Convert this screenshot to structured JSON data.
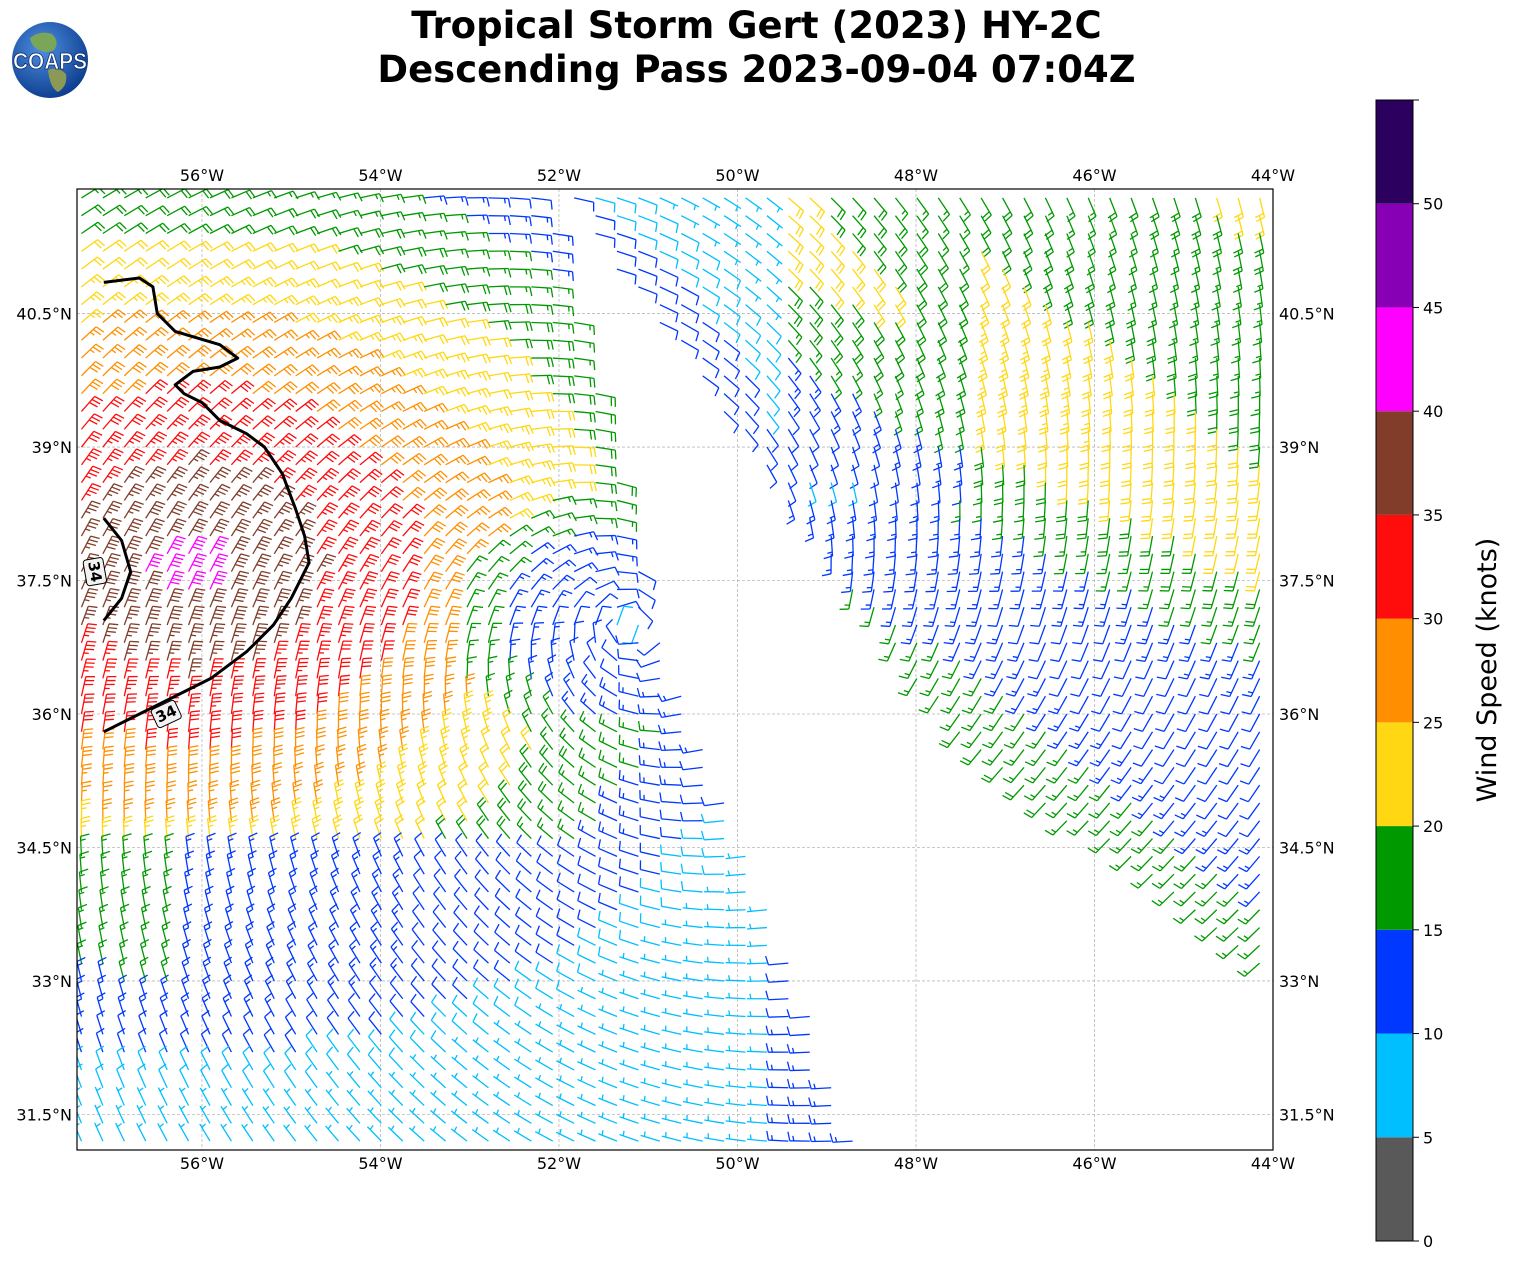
{
  "title": {
    "line1": "Tropical Storm Gert (2023) HY-2C",
    "line2": "Descending Pass 2023-09-04 07:04Z"
  },
  "logo": {
    "text": "COAPS",
    "icon": "coaps-globe-logo"
  },
  "map": {
    "lon_range": [
      -57.4,
      -44.0
    ],
    "lat_range": [
      31.1,
      41.9
    ],
    "lon_ticks": [
      {
        "value": -56,
        "label": "56°W"
      },
      {
        "value": -54,
        "label": "54°W"
      },
      {
        "value": -52,
        "label": "52°W"
      },
      {
        "value": -50,
        "label": "50°W"
      },
      {
        "value": -48,
        "label": "48°W"
      },
      {
        "value": -46,
        "label": "46°W"
      },
      {
        "value": -44,
        "label": "44°W"
      }
    ],
    "lat_ticks": [
      {
        "value": 40.5,
        "label": "40.5°N"
      },
      {
        "value": 39.0,
        "label": "39°N"
      },
      {
        "value": 37.5,
        "label": "37.5°N"
      },
      {
        "value": 36.0,
        "label": "36°N"
      },
      {
        "value": 34.5,
        "label": "34.5°N"
      },
      {
        "value": 33.0,
        "label": "33°N"
      },
      {
        "value": 31.5,
        "label": "31.5°N"
      }
    ],
    "grid": true,
    "storm_center": {
      "lon": -51.2,
      "lat": 37.0
    },
    "swaths": [
      {
        "name": "west",
        "lon_min": -57.4,
        "lat_max": 41.9,
        "lat_min": 31.1,
        "edge_top_lon": -52.2,
        "edge_mid_lon": -50.9,
        "edge_mid_lat": 37.0,
        "edge_bottom_lon": -48.6
      },
      {
        "name": "east",
        "edge_top_lon": -52.0,
        "edge_bottom_lon": -47.6,
        "edge_bottom_lat": 35.8,
        "lon_max": -44.0,
        "lat_max": 41.9,
        "lat_min": 33.0
      }
    ],
    "contour_34kt": {
      "level": 34,
      "label": "34",
      "labels": [
        {
          "text": "34",
          "lon": -57.2,
          "lat": 37.6
        },
        {
          "text": "34",
          "lon": -56.4,
          "lat": 36.0
        }
      ],
      "paths": [
        [
          [
            -57.1,
            40.85
          ],
          [
            -56.7,
            40.9
          ],
          [
            -56.55,
            40.8
          ],
          [
            -56.5,
            40.5
          ],
          [
            -56.3,
            40.3
          ],
          [
            -55.8,
            40.15
          ],
          [
            -55.6,
            40.0
          ],
          [
            -55.8,
            39.9
          ],
          [
            -56.1,
            39.85
          ],
          [
            -56.3,
            39.7
          ],
          [
            -56.2,
            39.6
          ],
          [
            -56.0,
            39.5
          ],
          [
            -55.8,
            39.3
          ],
          [
            -55.5,
            39.15
          ],
          [
            -55.3,
            39.0
          ],
          [
            -55.1,
            38.7
          ],
          [
            -54.95,
            38.3
          ],
          [
            -54.85,
            38.0
          ],
          [
            -54.8,
            37.7
          ],
          [
            -55.0,
            37.3
          ],
          [
            -55.2,
            37.0
          ],
          [
            -55.5,
            36.7
          ],
          [
            -55.9,
            36.4
          ],
          [
            -56.5,
            36.1
          ],
          [
            -57.1,
            35.8
          ]
        ],
        [
          [
            -57.1,
            38.2
          ],
          [
            -56.9,
            37.95
          ],
          [
            -56.8,
            37.6
          ],
          [
            -56.9,
            37.3
          ],
          [
            -57.1,
            37.05
          ]
        ]
      ]
    }
  },
  "colorbar": {
    "label": "Wind Speed (knots)",
    "bins": [
      {
        "min": 0,
        "max": 5,
        "color": "#595959"
      },
      {
        "min": 5,
        "max": 10,
        "color": "#00bfff"
      },
      {
        "min": 10,
        "max": 15,
        "color": "#0038ff"
      },
      {
        "min": 15,
        "max": 20,
        "color": "#009900"
      },
      {
        "min": 20,
        "max": 25,
        "color": "#ffd712"
      },
      {
        "min": 25,
        "max": 30,
        "color": "#ff8f00"
      },
      {
        "min": 30,
        "max": 35,
        "color": "#ff0c0c"
      },
      {
        "min": 35,
        "max": 40,
        "color": "#813d2a"
      },
      {
        "min": 40,
        "max": 45,
        "color": "#ff00ff"
      },
      {
        "min": 45,
        "max": 50,
        "color": "#8800b5"
      },
      {
        "min": 50,
        "max": 55,
        "color": "#2c005f"
      }
    ],
    "ticks": [
      {
        "value": 0,
        "label": "0"
      },
      {
        "value": 5,
        "label": "5"
      },
      {
        "value": 10,
        "label": "10"
      },
      {
        "value": 15,
        "label": "15"
      },
      {
        "value": 20,
        "label": "20"
      },
      {
        "value": 25,
        "label": "25"
      },
      {
        "value": 30,
        "label": "30"
      },
      {
        "value": 35,
        "label": "35"
      },
      {
        "value": 40,
        "label": "40"
      },
      {
        "value": 45,
        "label": "45"
      },
      {
        "value": 50,
        "label": "50"
      }
    ]
  }
}
